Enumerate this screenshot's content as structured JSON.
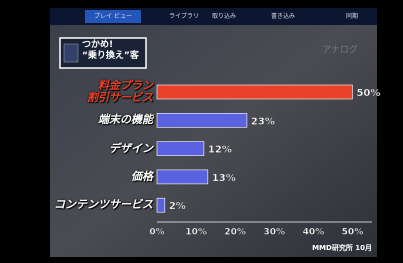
{
  "menu": [
    "プレイ ビュー",
    "ライブラリ",
    "取り込み",
    "書き込み",
    "同期"
  ],
  "watermark": "アナログ",
  "chart_data": {
    "type": "bar",
    "orientation": "horizontal",
    "title": "つかめ!\n“乗り換え”客",
    "categories": [
      "料金プラン\n割引サービス",
      "端末の機能",
      "デザイン",
      "価格",
      "コンテンツサービス"
    ],
    "values": [
      50,
      23,
      12,
      13,
      2
    ],
    "value_labels": [
      "50%",
      "23%",
      "12%",
      "13%",
      "2%"
    ],
    "colors": [
      "#e8432a",
      "#5a62e0",
      "#5a62e0",
      "#5a62e0",
      "#5a62e0"
    ],
    "xlim": [
      0,
      55
    ],
    "xticks": [
      {
        "value": 0,
        "label": "0%"
      },
      {
        "value": 10,
        "label": "10%"
      },
      {
        "value": 20,
        "label": "20%"
      },
      {
        "value": 30,
        "label": "30%"
      },
      {
        "value": 40,
        "label": "40%"
      },
      {
        "value": 50,
        "label": "50%"
      }
    ],
    "source": "MMD研究所 10月"
  }
}
